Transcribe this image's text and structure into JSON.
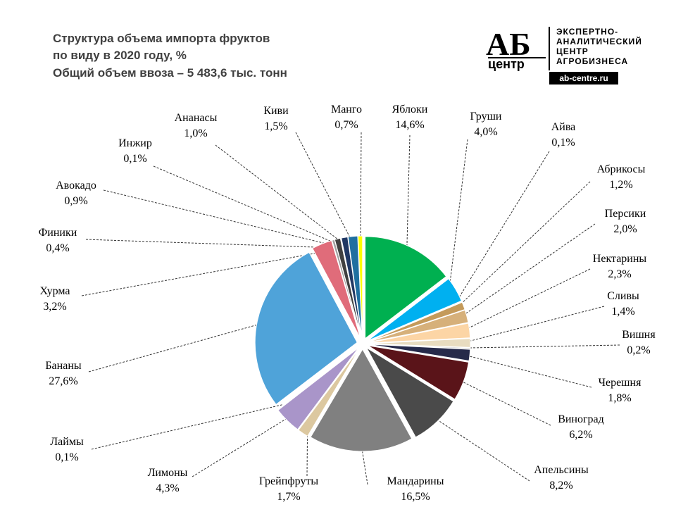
{
  "chart_data": {
    "type": "pie",
    "title": [
      "Структура объема импорта фруктов",
      "по виду в 2020 году, %",
      "Общий объем ввоза – 5 483,6 тыс. тонн"
    ],
    "logo": {
      "mark": "АБ",
      "sub": "центр",
      "lines": [
        "ЭКСПЕРТНО-",
        "АНАЛИТИЧЕСКИЙ",
        "ЦЕНТР",
        "АГРОБИЗНЕСА"
      ],
      "url": "ab-centre.ru"
    },
    "categories": [
      "Яблоки",
      "Груши",
      "Айва",
      "Абрикосы",
      "Персики",
      "Нектарины",
      "Сливы",
      "Вишня",
      "Черешня",
      "Виноград",
      "Апельсины",
      "Мандарины",
      "Грейпфруты",
      "Лимоны",
      "Лаймы",
      "Бананы",
      "Хурма",
      "Финики",
      "Авокадо",
      "Инжир",
      "Ананасы",
      "Киви",
      "Манго"
    ],
    "values": [
      14.6,
      4.0,
      0.1,
      1.2,
      2.0,
      2.3,
      1.4,
      0.2,
      1.8,
      6.2,
      8.2,
      16.5,
      1.7,
      4.3,
      0.1,
      27.6,
      3.2,
      0.4,
      0.9,
      0.1,
      1.0,
      1.5,
      0.7
    ],
    "value_labels": [
      "14,6%",
      "4,0%",
      "0,1%",
      "1,2%",
      "2,0%",
      "2,3%",
      "1,4%",
      "0,2%",
      "1,8%",
      "6,2%",
      "8,2%",
      "16,5%",
      "1,7%",
      "4,3%",
      "0,1%",
      "27,6%",
      "3,2%",
      "0,4%",
      "0,9%",
      "0,1%",
      "1,0%",
      "1,5%",
      "0,7%"
    ],
    "colors": [
      "#00b050",
      "#00b0f0",
      "#6b3a1f",
      "#c49a5a",
      "#d6b07a",
      "#fcd5a5",
      "#e8dcc0",
      "#c8c8c8",
      "#262a4a",
      "#5a1419",
      "#4a4a4a",
      "#808080",
      "#dcc8a0",
      "#a995c9",
      "#6e6e6e",
      "#4fa3d9",
      "#e06c7a",
      "#a0a0a0",
      "#404040",
      "#9a8a70",
      "#203864",
      "#1f6fa0",
      "#ffff00"
    ]
  }
}
